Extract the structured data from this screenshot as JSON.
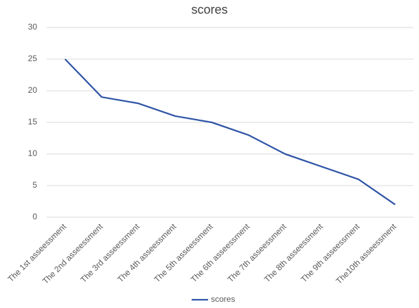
{
  "chart_data": {
    "type": "line",
    "title": "scores",
    "categories": [
      "The 1st asseessment",
      "The 2nd asseessment",
      "The 3rd asseessment",
      "The 4th asseessment",
      "The 5th asseessment",
      "The 6th asseessment",
      "The 7th asseessment",
      "The 8th asseessment",
      "The 9th asseessment",
      "The10th asseessment"
    ],
    "series": [
      {
        "name": "scores",
        "color": "#2f55a6",
        "values": [
          25,
          19,
          18,
          16,
          15,
          13,
          10,
          8,
          6,
          2
        ]
      }
    ],
    "ylim": [
      0,
      30
    ],
    "yticks": [
      0,
      5,
      10,
      15,
      20,
      25,
      30
    ],
    "grid": true,
    "legend": "bottom"
  }
}
